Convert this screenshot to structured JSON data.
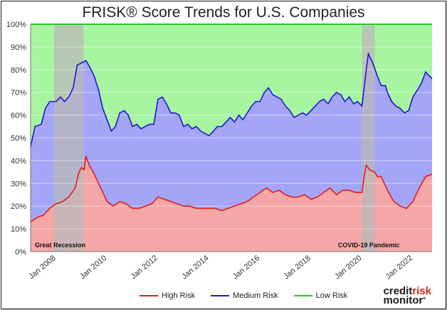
{
  "chart_data": {
    "type": "area",
    "title": "FRISK® Score Trends for U.S. Companies",
    "ylim": [
      0,
      100
    ],
    "y_ticks": [
      "0%",
      "10%",
      "20%",
      "30%",
      "40%",
      "50%",
      "60%",
      "70%",
      "80%",
      "90%",
      "100%"
    ],
    "x_range": [
      2007.0,
      2022.75
    ],
    "x_ticks": [
      {
        "label": "Jan 2008",
        "value": 2008
      },
      {
        "label": "Jan 2010",
        "value": 2010
      },
      {
        "label": "Jan 2012",
        "value": 2012
      },
      {
        "label": "Jan 2014",
        "value": 2014
      },
      {
        "label": "Jan 2016",
        "value": 2016
      },
      {
        "label": "Jan 2018",
        "value": 2018
      },
      {
        "label": "Jan 2020",
        "value": 2020
      },
      {
        "label": "Jan 2022",
        "value": 2022
      }
    ],
    "annotations": [
      {
        "label": "Great Recession",
        "start": 2007.92,
        "end": 2009.08
      },
      {
        "label": "COVID-19 Pandemic",
        "start": 2020.0,
        "end": 2020.5
      }
    ],
    "series": [
      {
        "name": "High Risk",
        "color": "#e01e1e",
        "points": [
          [
            2007.0,
            13
          ],
          [
            2007.25,
            15
          ],
          [
            2007.5,
            16
          ],
          [
            2007.75,
            19
          ],
          [
            2008.0,
            21
          ],
          [
            2008.25,
            22
          ],
          [
            2008.5,
            24
          ],
          [
            2008.75,
            28
          ],
          [
            2008.9,
            35
          ],
          [
            2009.0,
            37
          ],
          [
            2009.1,
            36
          ],
          [
            2009.17,
            42
          ],
          [
            2009.3,
            38
          ],
          [
            2009.5,
            34
          ],
          [
            2009.75,
            28
          ],
          [
            2010.0,
            22
          ],
          [
            2010.25,
            20
          ],
          [
            2010.5,
            22
          ],
          [
            2010.75,
            21
          ],
          [
            2011.0,
            19
          ],
          [
            2011.25,
            19
          ],
          [
            2011.5,
            20
          ],
          [
            2011.75,
            21
          ],
          [
            2012.0,
            24
          ],
          [
            2012.25,
            23
          ],
          [
            2012.5,
            22
          ],
          [
            2012.75,
            21
          ],
          [
            2013.0,
            20
          ],
          [
            2013.25,
            20
          ],
          [
            2013.5,
            19
          ],
          [
            2013.75,
            19
          ],
          [
            2014.0,
            19
          ],
          [
            2014.25,
            19
          ],
          [
            2014.5,
            18
          ],
          [
            2014.75,
            19
          ],
          [
            2015.0,
            20
          ],
          [
            2015.25,
            21
          ],
          [
            2015.5,
            22
          ],
          [
            2015.75,
            24
          ],
          [
            2016.0,
            26
          ],
          [
            2016.25,
            28
          ],
          [
            2016.5,
            26
          ],
          [
            2016.75,
            27
          ],
          [
            2017.0,
            25
          ],
          [
            2017.25,
            24
          ],
          [
            2017.5,
            24
          ],
          [
            2017.75,
            25
          ],
          [
            2018.0,
            23
          ],
          [
            2018.25,
            24
          ],
          [
            2018.5,
            26
          ],
          [
            2018.75,
            28
          ],
          [
            2019.0,
            25
          ],
          [
            2019.25,
            27
          ],
          [
            2019.5,
            27
          ],
          [
            2019.75,
            26
          ],
          [
            2020.0,
            26
          ],
          [
            2020.1,
            34
          ],
          [
            2020.17,
            38
          ],
          [
            2020.3,
            36
          ],
          [
            2020.5,
            35
          ],
          [
            2020.6,
            33
          ],
          [
            2020.75,
            33
          ],
          [
            2021.0,
            27
          ],
          [
            2021.25,
            22
          ],
          [
            2021.5,
            20
          ],
          [
            2021.75,
            19
          ],
          [
            2022.0,
            22
          ],
          [
            2022.25,
            28
          ],
          [
            2022.5,
            33
          ],
          [
            2022.75,
            34
          ]
        ]
      },
      {
        "name": "Medium Risk",
        "color": "#1a1ad0",
        "points": [
          [
            2007.0,
            46
          ],
          [
            2007.17,
            55
          ],
          [
            2007.42,
            56
          ],
          [
            2007.58,
            63
          ],
          [
            2007.75,
            66
          ],
          [
            2008.0,
            66
          ],
          [
            2008.17,
            68
          ],
          [
            2008.33,
            66
          ],
          [
            2008.5,
            68
          ],
          [
            2008.67,
            72
          ],
          [
            2008.83,
            82
          ],
          [
            2009.0,
            83
          ],
          [
            2009.17,
            84
          ],
          [
            2009.33,
            81
          ],
          [
            2009.5,
            77
          ],
          [
            2009.67,
            71
          ],
          [
            2009.83,
            63
          ],
          [
            2010.0,
            58
          ],
          [
            2010.17,
            53
          ],
          [
            2010.33,
            55
          ],
          [
            2010.5,
            61
          ],
          [
            2010.67,
            62
          ],
          [
            2010.83,
            60
          ],
          [
            2011.0,
            55
          ],
          [
            2011.17,
            56
          ],
          [
            2011.33,
            54
          ],
          [
            2011.5,
            55
          ],
          [
            2011.67,
            56
          ],
          [
            2011.83,
            56
          ],
          [
            2012.0,
            67
          ],
          [
            2012.17,
            68
          ],
          [
            2012.33,
            65
          ],
          [
            2012.5,
            61
          ],
          [
            2012.67,
            61
          ],
          [
            2012.83,
            60
          ],
          [
            2013.0,
            55
          ],
          [
            2013.17,
            56
          ],
          [
            2013.33,
            54
          ],
          [
            2013.5,
            55
          ],
          [
            2013.67,
            53
          ],
          [
            2013.83,
            52
          ],
          [
            2014.0,
            51
          ],
          [
            2014.17,
            53
          ],
          [
            2014.33,
            55
          ],
          [
            2014.5,
            55
          ],
          [
            2014.67,
            57
          ],
          [
            2014.83,
            59
          ],
          [
            2015.0,
            57
          ],
          [
            2015.17,
            60
          ],
          [
            2015.33,
            58
          ],
          [
            2015.5,
            61
          ],
          [
            2015.67,
            64
          ],
          [
            2015.83,
            66
          ],
          [
            2016.0,
            66
          ],
          [
            2016.17,
            70
          ],
          [
            2016.33,
            72
          ],
          [
            2016.5,
            69
          ],
          [
            2016.67,
            68
          ],
          [
            2016.83,
            67
          ],
          [
            2017.0,
            64
          ],
          [
            2017.17,
            62
          ],
          [
            2017.33,
            59
          ],
          [
            2017.5,
            60
          ],
          [
            2017.67,
            61
          ],
          [
            2017.83,
            60
          ],
          [
            2018.0,
            62
          ],
          [
            2018.17,
            64
          ],
          [
            2018.33,
            66
          ],
          [
            2018.5,
            67
          ],
          [
            2018.67,
            65
          ],
          [
            2018.83,
            68
          ],
          [
            2019.0,
            70
          ],
          [
            2019.17,
            69
          ],
          [
            2019.33,
            66
          ],
          [
            2019.5,
            68
          ],
          [
            2019.67,
            65
          ],
          [
            2019.83,
            66
          ],
          [
            2020.0,
            64
          ],
          [
            2020.17,
            80
          ],
          [
            2020.25,
            87
          ],
          [
            2020.42,
            83
          ],
          [
            2020.58,
            78
          ],
          [
            2020.75,
            73
          ],
          [
            2020.92,
            73
          ],
          [
            2021.0,
            70
          ],
          [
            2021.17,
            66
          ],
          [
            2021.33,
            64
          ],
          [
            2021.5,
            63
          ],
          [
            2021.67,
            61
          ],
          [
            2021.83,
            62
          ],
          [
            2022.0,
            68
          ],
          [
            2022.17,
            71
          ],
          [
            2022.33,
            74
          ],
          [
            2022.5,
            79
          ],
          [
            2022.75,
            76
          ]
        ]
      },
      {
        "name": "Low Risk",
        "color": "#22d022",
        "points": [
          [
            2007.0,
            100
          ],
          [
            2022.75,
            100
          ]
        ]
      }
    ]
  },
  "branding": {
    "line1_a": "credit",
    "line1_b": "risk",
    "line2": "monitor",
    "mark": "°"
  }
}
